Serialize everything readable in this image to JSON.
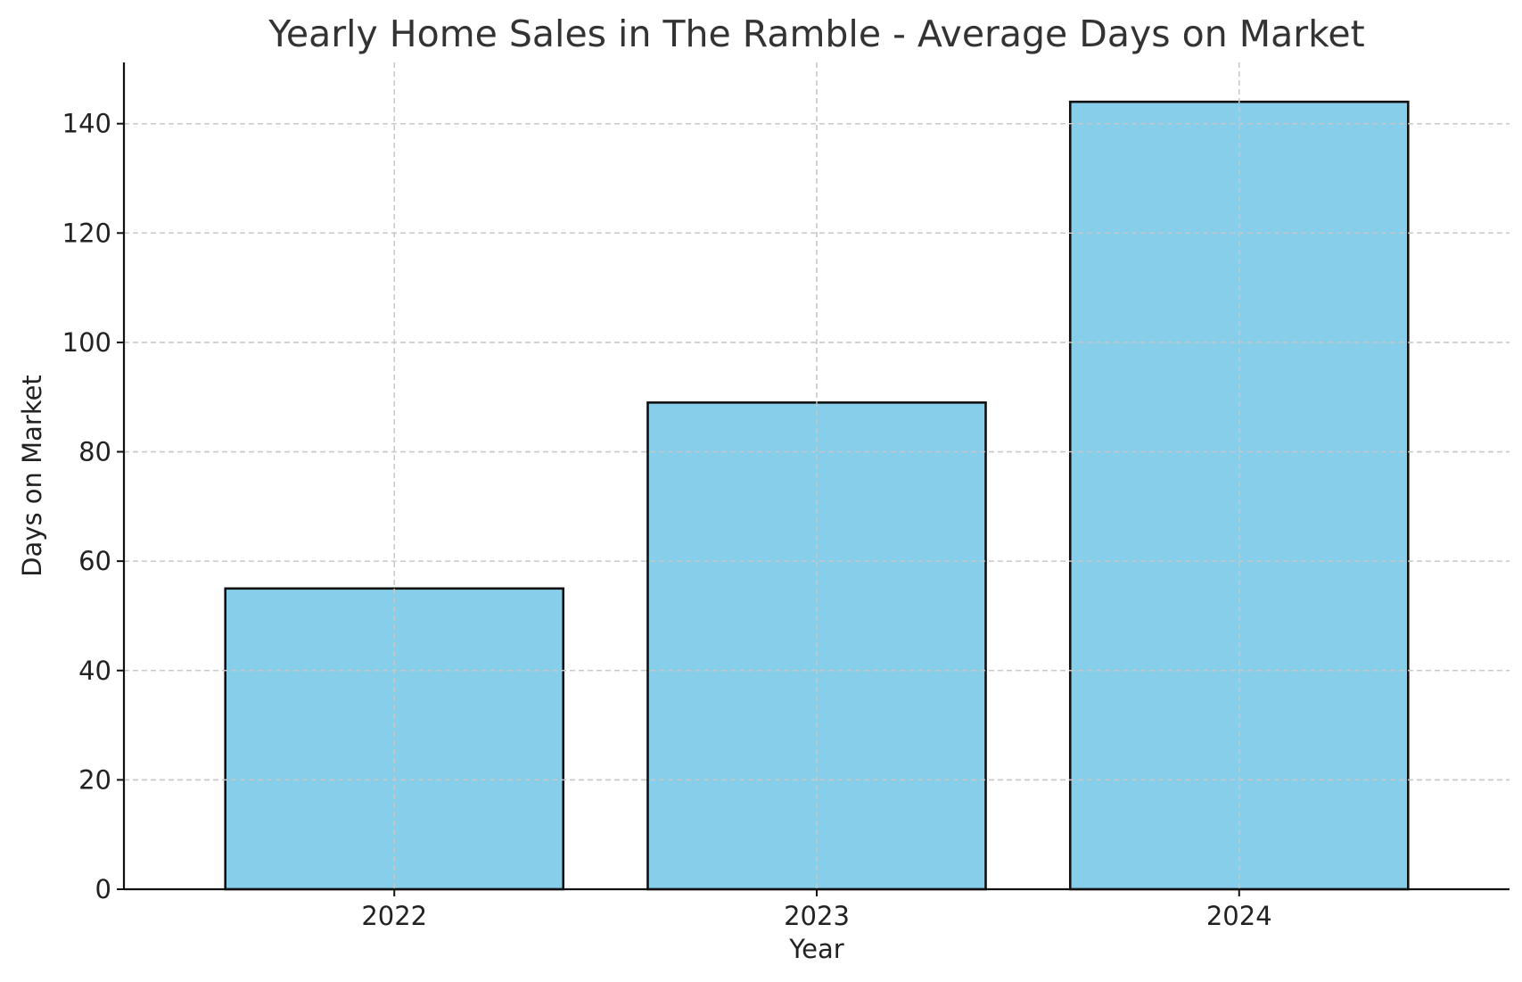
{
  "chart_data": {
    "type": "bar",
    "title": "Yearly Home Sales in The Ramble - Average Days on Market",
    "xlabel": "Year",
    "ylabel": "Days on Market",
    "categories": [
      "2022",
      "2023",
      "2024"
    ],
    "values": [
      55,
      89,
      144
    ],
    "ylim": [
      0,
      151.2
    ],
    "yticks": [
      0,
      20,
      40,
      60,
      80,
      100,
      120,
      140
    ],
    "grid": true,
    "bar_color": "#87ceeb",
    "edge_color": "#111111"
  }
}
